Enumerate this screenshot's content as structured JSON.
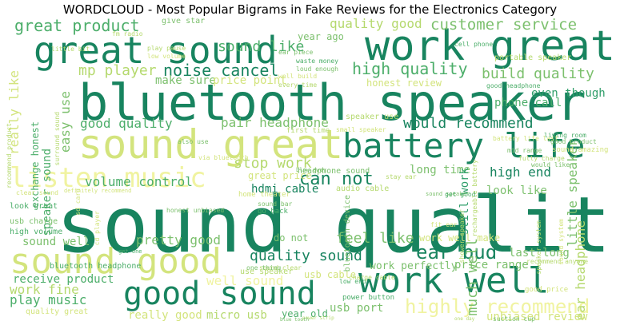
{
  "title": "WORDCLOUD - Most Popular Bigrams in Fake Reviews for the Electronics Category",
  "palette": {
    "dark_green": "#18845f",
    "mid_green": "#2f9e6a",
    "green": "#4cae6a",
    "light_green": "#7cc06d",
    "lime": "#b5d96e",
    "yellow_green": "#d3e47d",
    "pale_yellow": "#e2ec8a",
    "yellow": "#f0f3a0"
  },
  "words": [
    "sound quality",
    "bluetooth speaker",
    "work great",
    "great sound",
    "sound great",
    "battery life",
    "work well",
    "sound good",
    "good sound",
    "listen music",
    "highly recommend",
    "ear bud",
    "great product",
    "quality good",
    "customer service",
    "noise cancel",
    "high quality",
    "build quality",
    "mp player",
    "sound like",
    "would recommend",
    "pair headphone",
    "good quality",
    "volume control",
    "stop work",
    "can not",
    "quality sound",
    "feel like",
    "much well",
    "ear headphone",
    "little speaker",
    "really like",
    "easy use",
    "exchange honest",
    "speaker sound",
    "high end",
    "long time",
    "look like",
    "phone call",
    "hdmi cable",
    "pretty good",
    "play music",
    "work fine",
    "sound well",
    "receive product",
    "micro usb",
    "usb port",
    "well sound",
    "price range",
    "last long",
    "work perfectly",
    "really good",
    "honest review",
    "make sure",
    "price point",
    "even though",
    "year ago",
    "do not",
    "usb cable",
    "good headphone",
    "portable speaker",
    "cell phone",
    "give star",
    "great price",
    "audio cable",
    "home theater",
    "work well make",
    "still work",
    "year old",
    "unbiased review",
    "high volume",
    "look great",
    "usb charge",
    "quality great",
    "bluetooth headphone",
    "power button",
    "sound bar",
    "go back",
    "waste money",
    "loud enough",
    "living room",
    "good product",
    "sound amazing",
    "mid range",
    "fully charge",
    "would like",
    "power strip",
    "suction cup",
    "blow away",
    "sound clear",
    "first time",
    "use speaker",
    "small speaker",
    "bluetooth device",
    "headphone sound",
    "rechargeable battery",
    "speaker use",
    "one thing",
    "get one",
    "low end",
    "recommend anyone",
    "good price",
    "also use",
    "via bluetooth",
    "fit ear",
    "sound speaker",
    "honest unbiased",
    "definitely recommend",
    "clear sound",
    "little bit",
    "fm radio",
    "play pause",
    "low volume",
    "ear piece",
    "every time",
    "well build",
    "stay ear",
    "surround sound",
    "recommend product",
    "charge cable",
    "speaker system",
    "battery life last",
    "sd card",
    "cd player",
    "shower speaker",
    "sound system",
    "blue tooth",
    "one day",
    "get good"
  ]
}
